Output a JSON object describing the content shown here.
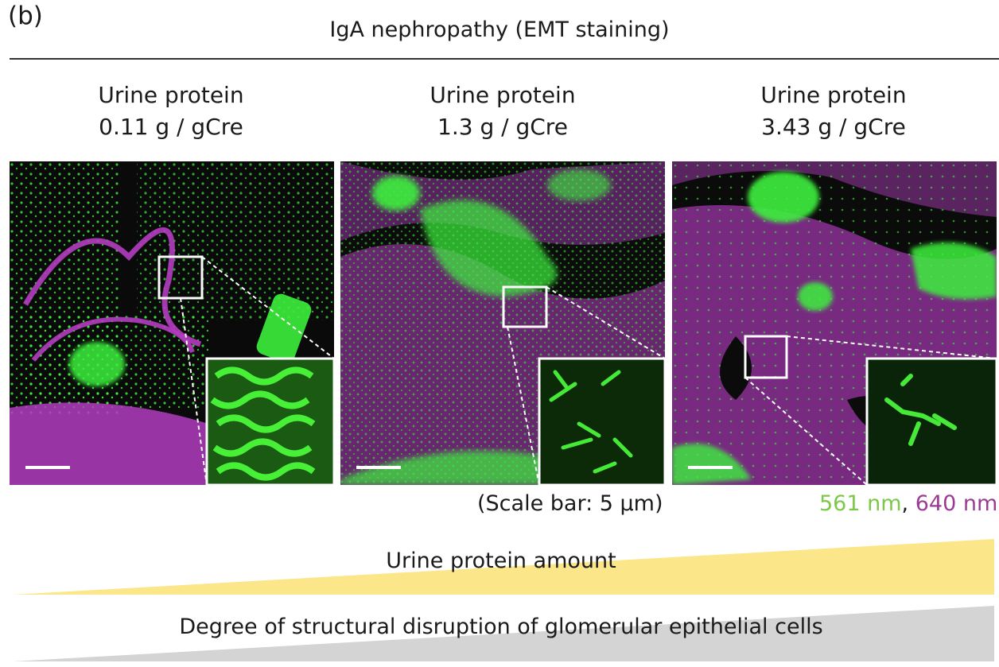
{
  "figure": {
    "panel_label": "(b)",
    "title": "IgA nephropathy (EMT staining)"
  },
  "panels": [
    {
      "line1": "Urine protein",
      "line2": "0.11 g / gCre",
      "image": "confocal-micrograph-low-proteinuria"
    },
    {
      "line1": "Urine protein",
      "line2": "1.3 g / gCre",
      "image": "confocal-micrograph-medium-proteinuria"
    },
    {
      "line1": "Urine protein",
      "line2": "3.43 g / gCre",
      "image": "confocal-micrograph-high-proteinuria"
    }
  ],
  "scale_note": "(Scale bar:  5 μm)",
  "wavelengths": {
    "green_label": "561 nm",
    "separator": ",",
    "magenta_label": "640 nm",
    "green_color": "#7cc94a",
    "magenta_color": "#9b3b93"
  },
  "ramps": [
    {
      "label": "Urine protein amount",
      "color": "#fbe68a"
    },
    {
      "label": "Degree of structural disruption of glomerular epithelial cells",
      "color": "#d4d4d4"
    }
  ],
  "colors": {
    "green_stain": "#3cf03c",
    "magenta_stain": "#b23cc0"
  }
}
